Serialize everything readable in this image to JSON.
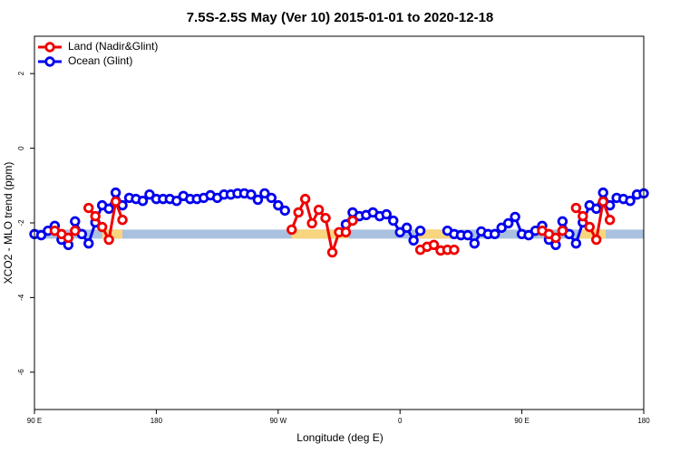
{
  "chart_data": {
    "type": "line",
    "title": "7.5S-2.5S May (Ver 10)   2015-01-01 to 2020-12-18",
    "x_label": "Longitude (deg E)",
    "y_label": "XCO2 - MLO trend (ppm)",
    "xlim": [
      90,
      540
    ],
    "xticks": [
      {
        "value": 90,
        "label": "90 E"
      },
      180,
      {
        "value": 270,
        "label": "90 W"
      },
      {
        "value": 360,
        "label": "0"
      },
      {
        "value": 450,
        "label": "90 E"
      },
      {
        "value": 540,
        "label": "180"
      }
    ],
    "ylim": [
      -7,
      3
    ],
    "yticks": [
      -6,
      -4,
      -2,
      0,
      2
    ],
    "legend": "top-left",
    "bands": [
      {
        "color": "#a9c1df",
        "value": -2.3,
        "ranges": [
          [
            90,
            540
          ]
        ]
      },
      {
        "color": "#f8d57e",
        "value": -2.3,
        "ranges": [
          [
            140,
            155
          ],
          [
            280,
            322
          ],
          [
            372,
            400
          ],
          [
            493,
            512
          ]
        ]
      }
    ],
    "series": [
      {
        "name": "Land (Nadir&Glint)",
        "color": "#ee0000",
        "x": [
          105,
          110,
          115,
          120,
          null,
          130,
          135,
          140,
          145,
          150,
          155,
          null,
          280,
          285,
          290,
          295,
          300,
          305,
          310,
          315,
          320,
          325,
          null,
          375,
          380,
          385,
          390,
          395,
          400,
          null,
          465,
          470,
          475,
          480,
          null,
          490,
          495,
          500,
          505,
          510,
          515
        ],
        "values": [
          -2.21,
          -2.3,
          -2.4,
          -2.21,
          null,
          -1.6,
          -1.82,
          -2.11,
          -2.45,
          -1.43,
          -1.92,
          null,
          -2.18,
          -1.72,
          -1.36,
          -2.01,
          -1.65,
          -1.87,
          -2.79,
          -2.25,
          -2.25,
          -1.94,
          null,
          -2.72,
          -2.64,
          -2.59,
          -2.74,
          -2.72,
          -2.72,
          null,
          -2.21,
          -2.3,
          -2.4,
          -2.21,
          null,
          -1.6,
          -1.82,
          -2.11,
          -2.45,
          -1.43,
          -1.92
        ]
      },
      {
        "name": "Ocean (Glint)",
        "color": "#0000ee",
        "x": [
          90,
          95,
          100,
          105,
          110,
          115,
          120,
          125,
          130,
          135,
          140,
          145,
          150,
          155,
          160,
          165,
          170,
          175,
          180,
          185,
          190,
          195,
          200,
          205,
          210,
          215,
          220,
          225,
          230,
          235,
          240,
          245,
          250,
          255,
          260,
          265,
          270,
          275,
          null,
          320,
          325,
          330,
          335,
          340,
          345,
          350,
          355,
          360,
          365,
          370,
          375,
          null,
          395,
          400,
          405,
          410,
          415,
          420,
          425,
          430,
          435,
          440,
          445,
          450,
          455,
          460,
          465,
          470,
          475,
          480,
          485,
          490,
          495,
          500,
          505,
          510,
          515,
          520,
          525,
          530,
          535,
          540
        ],
        "values": [
          -2.3,
          -2.33,
          -2.21,
          -2.08,
          -2.45,
          -2.59,
          -1.96,
          -2.3,
          -2.55,
          -1.99,
          -1.53,
          -1.62,
          -1.19,
          -1.53,
          -1.33,
          -1.36,
          -1.41,
          -1.24,
          -1.36,
          -1.36,
          -1.36,
          -1.41,
          -1.28,
          -1.36,
          -1.36,
          -1.33,
          -1.26,
          -1.33,
          -1.24,
          -1.24,
          -1.21,
          -1.21,
          -1.24,
          -1.38,
          -1.21,
          -1.33,
          -1.53,
          -1.67,
          null,
          -2.04,
          -1.72,
          -1.82,
          -1.79,
          -1.72,
          -1.82,
          -1.77,
          -1.94,
          -2.25,
          -2.13,
          -2.47,
          -2.21,
          null,
          -2.21,
          -2.3,
          -2.33,
          -2.33,
          -2.55,
          -2.23,
          -2.3,
          -2.3,
          -2.13,
          -2.01,
          -1.84,
          -2.3,
          -2.33,
          -2.21,
          -2.08,
          -2.45,
          -2.59,
          -1.96,
          -2.3,
          -2.55,
          -1.99,
          -1.53,
          -1.62,
          -1.19,
          -1.53,
          -1.33,
          -1.36,
          -1.41,
          -1.24,
          -1.21
        ]
      }
    ]
  }
}
